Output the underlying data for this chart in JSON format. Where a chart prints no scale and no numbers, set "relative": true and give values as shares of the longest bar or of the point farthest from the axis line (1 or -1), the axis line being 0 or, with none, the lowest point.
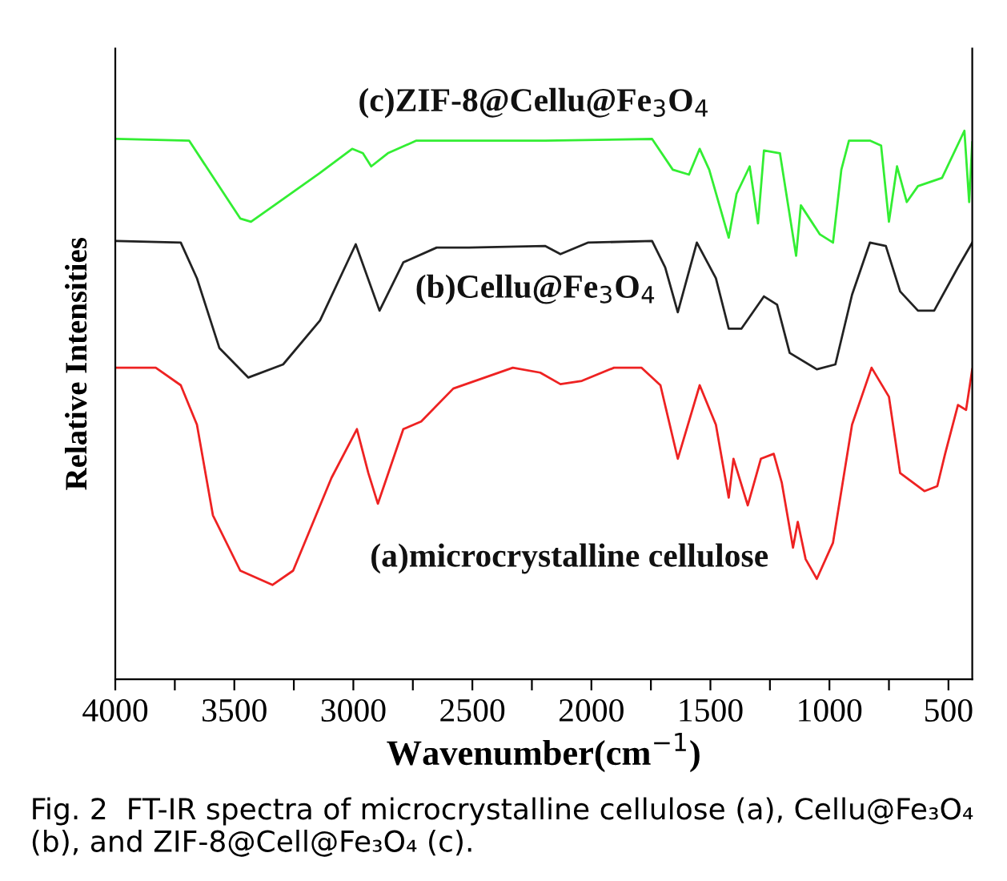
{
  "chart_data": {
    "type": "line",
    "relative": true,
    "xlabel": "Wavenumber(cm$^{−1}$)",
    "ylabel": "Relative Intensities",
    "xlim": [
      4000,
      400
    ],
    "xticks": [
      4000,
      {
        "value": 3750,
        "label": null
      },
      3500,
      {
        "value": 3250,
        "label": null
      },
      3000,
      {
        "value": 2750,
        "label": null
      },
      2500,
      {
        "value": 2250,
        "label": null
      },
      2000,
      {
        "value": 1750,
        "label": null
      },
      1500,
      {
        "value": 1250,
        "label": null
      },
      1000,
      {
        "value": 750,
        "label": null
      },
      500
    ],
    "grid": false,
    "legend": false,
    "marker": "none",
    "line_style": "solid",
    "series": [
      {
        "name": "(c)ZIF-8@Cellu@Fe$_{3}$O$_{4}$",
        "color": "#33ee33",
        "x": [
          3993,
          3690,
          3475,
          3430,
          3140,
          3005,
          2960,
          2925,
          2855,
          2735,
          2195,
          1745,
          1658,
          1590,
          1545,
          1505,
          1423,
          1390,
          1335,
          1300,
          1275,
          1208,
          1140,
          1120,
          1040,
          985,
          950,
          918,
          830,
          783,
          750,
          716,
          675,
          628,
          527,
          433,
          413,
          400
        ],
        "values": [
          0.985,
          0.982,
          0.84,
          0.834,
          0.923,
          0.967,
          0.959,
          0.935,
          0.959,
          0.982,
          0.982,
          0.985,
          0.929,
          0.92,
          0.967,
          0.929,
          0.805,
          0.885,
          0.935,
          0.831,
          0.964,
          0.959,
          0.772,
          0.864,
          0.811,
          0.796,
          0.929,
          0.982,
          0.982,
          0.973,
          0.834,
          0.935,
          0.87,
          0.899,
          0.914,
          1.0,
          0.87,
          0.979
        ]
      },
      {
        "name": "(b)Cellu@Fe$_{3}$O$_{4}$",
        "color": "#222222",
        "x": [
          3993,
          3725,
          3657,
          3563,
          3441,
          3295,
          3140,
          2990,
          2890,
          2790,
          2650,
          2515,
          2195,
          2130,
          2015,
          1745,
          1690,
          1637,
          1557,
          1477,
          1423,
          1370,
          1275,
          1220,
          1167,
          1053,
          975,
          905,
          830,
          763,
          703,
          628,
          560,
          460,
          400
        ],
        "values": [
          0.799,
          0.796,
          0.731,
          0.604,
          0.55,
          0.574,
          0.654,
          0.793,
          0.672,
          0.76,
          0.787,
          0.787,
          0.79,
          0.775,
          0.796,
          0.799,
          0.751,
          0.669,
          0.796,
          0.731,
          0.639,
          0.639,
          0.698,
          0.683,
          0.595,
          0.565,
          0.574,
          0.701,
          0.796,
          0.79,
          0.707,
          0.672,
          0.672,
          0.751,
          0.796
        ]
      },
      {
        "name": "(a)microcrystalline cellulose",
        "color": "#ee2222",
        "x": [
          3993,
          3830,
          3725,
          3657,
          3590,
          3475,
          3340,
          3253,
          3092,
          2985,
          2937,
          2897,
          2790,
          2715,
          2580,
          2330,
          2215,
          2130,
          2040,
          1905,
          1790,
          1710,
          1637,
          1545,
          1477,
          1423,
          1403,
          1343,
          1288,
          1234,
          1200,
          1153,
          1133,
          1100,
          1053,
          985,
          905,
          823,
          750,
          703,
          601,
          547,
          514,
          460,
          426,
          400
        ],
        "values": [
          0.568,
          0.568,
          0.536,
          0.464,
          0.299,
          0.198,
          0.172,
          0.198,
          0.367,
          0.456,
          0.376,
          0.32,
          0.456,
          0.47,
          0.53,
          0.568,
          0.559,
          0.538,
          0.544,
          0.568,
          0.568,
          0.536,
          0.402,
          0.536,
          0.464,
          0.331,
          0.402,
          0.317,
          0.402,
          0.411,
          0.358,
          0.24,
          0.287,
          0.219,
          0.183,
          0.249,
          0.464,
          0.568,
          0.515,
          0.376,
          0.343,
          0.352,
          0.411,
          0.5,
          0.491,
          0.565
        ]
      }
    ],
    "annotations": [
      "Fig. 2  FT-IR spectra of microcrystalline cellulose (a), Cellu@Fe₃O₄ (b), and ZIF-8@Cell@Fe₃O₄ (c)."
    ]
  }
}
